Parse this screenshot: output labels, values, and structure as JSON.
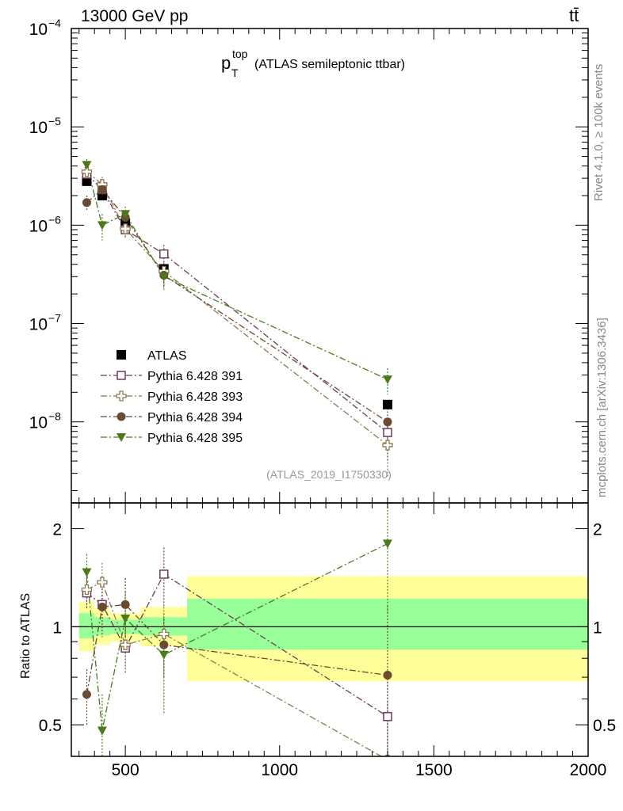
{
  "header": {
    "energy_label": "13000 GeV pp",
    "process_label": "tt̄"
  },
  "side_labels": {
    "rivet": "Rivet 4.1.0, ≥ 100k events",
    "mcplots": "mcplots.cern.ch [arXiv:1306.3436]"
  },
  "colors": {
    "atlas": "#000000",
    "p391": "#6e3a5a",
    "p393": "#8c7a50",
    "p394": "#6b4a30",
    "p395": "#4a7a1a",
    "band_inner": "#99ff99",
    "band_outer": "#ffff99"
  },
  "chart_data": [
    {
      "type": "scatter",
      "panel": "main",
      "title_main": "p",
      "title_sup": "top",
      "title_sub": "T",
      "title_rest": "(ATLAS semileptonic ttbar)",
      "analysis_id": "(ATLAS_2019_I1750330)",
      "yscale": "log",
      "xlim": [
        325,
        2000
      ],
      "ylim": [
        1.5e-09,
        0.0001
      ],
      "ytick_labels": [
        {
          "value": 1e-08,
          "base": "10",
          "exp": "−8"
        },
        {
          "value": 1e-07,
          "base": "10",
          "exp": "−7"
        },
        {
          "value": 1e-06,
          "base": "10",
          "exp": "−6"
        },
        {
          "value": 1e-05,
          "base": "10",
          "exp": "−5"
        },
        {
          "value": 0.0001,
          "base": "10",
          "exp": "−4"
        }
      ],
      "legend_position": "bottom-left",
      "series": [
        {
          "key": "atlas",
          "name": "ATLAS",
          "marker": "filled-square",
          "style": "data",
          "x": [
            375,
            425,
            500,
            625,
            1350
          ],
          "y": [
            2.8e-06,
            2e-06,
            1.05e-06,
            3.6e-07,
            1.5e-08
          ]
        },
        {
          "key": "p391",
          "name": "Pythia 6.428 391",
          "marker": "open-square",
          "style": "dashdot",
          "x": [
            375,
            425,
            500,
            625,
            1350
          ],
          "y": [
            3.3e-06,
            2.3e-06,
            9e-07,
            5.1e-07,
            7.8e-09
          ],
          "err": [
            5e-07,
            5e-07,
            1.5e-07,
            1.2e-07,
            2e-09
          ]
        },
        {
          "key": "p393",
          "name": "Pythia 6.428 393",
          "marker": "open-cross",
          "style": "dashdot",
          "x": [
            375,
            425,
            500,
            625,
            1350
          ],
          "y": [
            3.5e-06,
            2.6e-06,
            9.2e-07,
            3.4e-07,
            5.8e-09
          ],
          "err": [
            5e-07,
            5e-07,
            1.5e-07,
            8e-08,
            3e-09
          ]
        },
        {
          "key": "p394",
          "name": "Pythia 6.428 394",
          "marker": "filled-circle",
          "style": "dashdot",
          "x": [
            375,
            425,
            500,
            625,
            1350
          ],
          "y": [
            1.7e-06,
            2.3e-06,
            1.2e-06,
            3.1e-07,
            1e-08
          ],
          "err": [
            3e-07,
            4e-07,
            2e-07,
            8e-08,
            6e-09
          ]
        },
        {
          "key": "p395",
          "name": "Pythia 6.428 395",
          "marker": "filled-triangle-down",
          "style": "dashdot",
          "x": [
            375,
            425,
            500,
            625,
            1350
          ],
          "y": [
            4.1e-06,
            1e-06,
            1.3e-06,
            3e-07,
            2.7e-08
          ],
          "err": [
            6e-07,
            3e-07,
            2.5e-07,
            8e-08,
            8e-09
          ]
        }
      ]
    },
    {
      "type": "scatter",
      "panel": "ratio",
      "ylabel": "Ratio to ATLAS",
      "yscale": "log",
      "xlim": [
        325,
        2000
      ],
      "ylim": [
        0.4,
        2.4
      ],
      "ytick_labels": [
        {
          "value": 0.5,
          "label": "0.5"
        },
        {
          "value": 1,
          "label": "1"
        },
        {
          "value": 2,
          "label": "2"
        }
      ],
      "xtick_labels": [
        {
          "value": 500,
          "label": "500"
        },
        {
          "value": 1000,
          "label": "1000"
        },
        {
          "value": 1500,
          "label": "1500"
        },
        {
          "value": 2000,
          "label": "2000"
        }
      ],
      "bands": [
        {
          "x0": 350,
          "x1": 400,
          "inner": [
            0.92,
            1.1
          ],
          "outer": [
            0.84,
            1.19
          ]
        },
        {
          "x0": 400,
          "x1": 450,
          "inner": [
            0.94,
            1.07
          ],
          "outer": [
            0.88,
            1.14
          ]
        },
        {
          "x0": 450,
          "x1": 550,
          "inner": [
            0.95,
            1.05
          ],
          "outer": [
            0.9,
            1.1
          ]
        },
        {
          "x0": 550,
          "x1": 700,
          "inner": [
            0.94,
            1.07
          ],
          "outer": [
            0.87,
            1.15
          ]
        },
        {
          "x0": 700,
          "x1": 2000,
          "inner": [
            0.85,
            1.22
          ],
          "outer": [
            0.68,
            1.43
          ]
        }
      ],
      "series": [
        {
          "key": "p391",
          "marker": "open-square",
          "x": [
            375,
            425,
            500,
            625,
            1350
          ],
          "y": [
            1.27,
            1.17,
            0.86,
            1.45,
            0.53
          ],
          "err": [
            0.14,
            0.2,
            0.14,
            0.3,
            0.18
          ]
        },
        {
          "key": "p393",
          "marker": "open-cross",
          "x": [
            375,
            425,
            500,
            625,
            1350
          ],
          "y": [
            1.3,
            1.37,
            0.88,
            0.95,
            0.39
          ],
          "err": [
            0.15,
            0.2,
            0.14,
            0.2,
            0.2
          ]
        },
        {
          "key": "p394",
          "marker": "filled-circle",
          "x": [
            375,
            425,
            500,
            625,
            1350
          ],
          "y": [
            0.62,
            1.15,
            1.17,
            0.88,
            0.71
          ],
          "err": [
            0.12,
            0.22,
            0.24,
            0.18,
            0.45
          ]
        },
        {
          "key": "p395",
          "marker": "filled-triangle-down",
          "x": [
            375,
            425,
            500,
            625,
            1350
          ],
          "y": [
            1.47,
            0.48,
            1.06,
            0.82,
            1.8
          ],
          "err": [
            0.2,
            0.14,
            0.22,
            0.28,
            0.7
          ]
        }
      ]
    }
  ]
}
